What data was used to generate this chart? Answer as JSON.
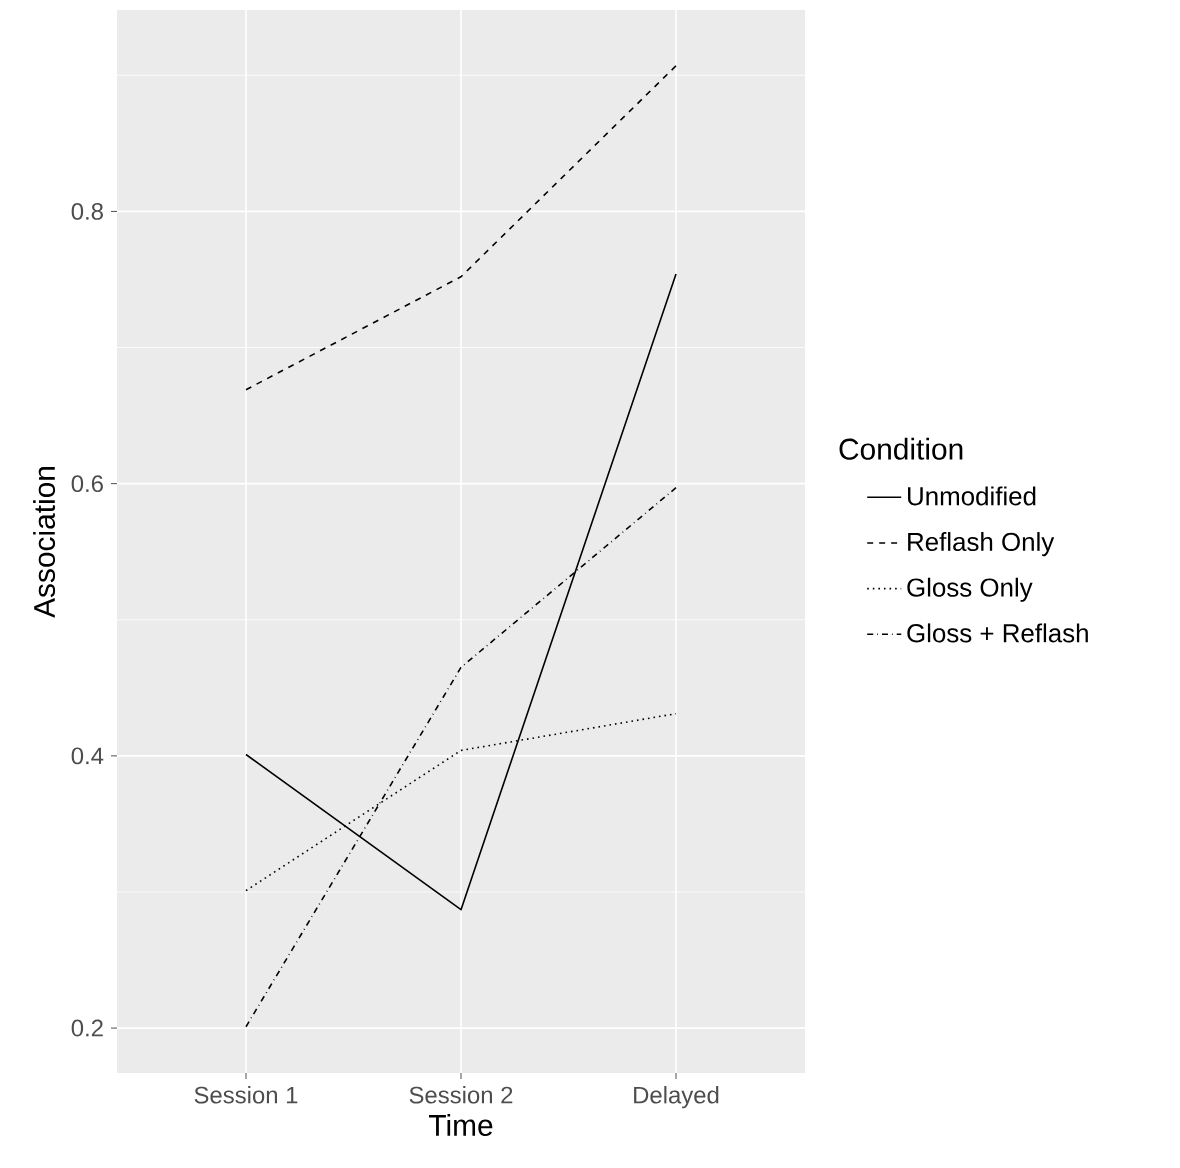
{
  "chart_data": {
    "type": "line",
    "xlabel": "Time",
    "ylabel": "Association",
    "legend_title": "Condition",
    "categories": [
      "Session 1",
      "Session 2",
      "Delayed"
    ],
    "ylim": [
      0.167,
      0.948
    ],
    "yticks": [
      0.2,
      {
        "value": 0.3,
        "label": null
      },
      0.4,
      {
        "value": 0.5,
        "label": null
      },
      0.6,
      {
        "value": 0.7,
        "label": null
      },
      0.8,
      {
        "value": 0.9,
        "label": null
      }
    ],
    "grid": true,
    "legend": "right",
    "marker": "none",
    "series": [
      {
        "name": "Unmodified",
        "color": "#000000",
        "line_style": "solid",
        "values": [
          0.401,
          0.287,
          0.754
        ]
      },
      {
        "name": "Reflash Only",
        "color": "#000000",
        "line_style": "dashed",
        "values": [
          0.669,
          0.752,
          0.907
        ]
      },
      {
        "name": "Gloss Only",
        "color": "#000000",
        "line_style": "dotted",
        "values": [
          0.301,
          0.404,
          0.431
        ]
      },
      {
        "name": "Gloss + Reflash",
        "color": "#000000",
        "line_style": "dashdot",
        "values": [
          0.201,
          0.465,
          0.597
        ]
      }
    ]
  }
}
